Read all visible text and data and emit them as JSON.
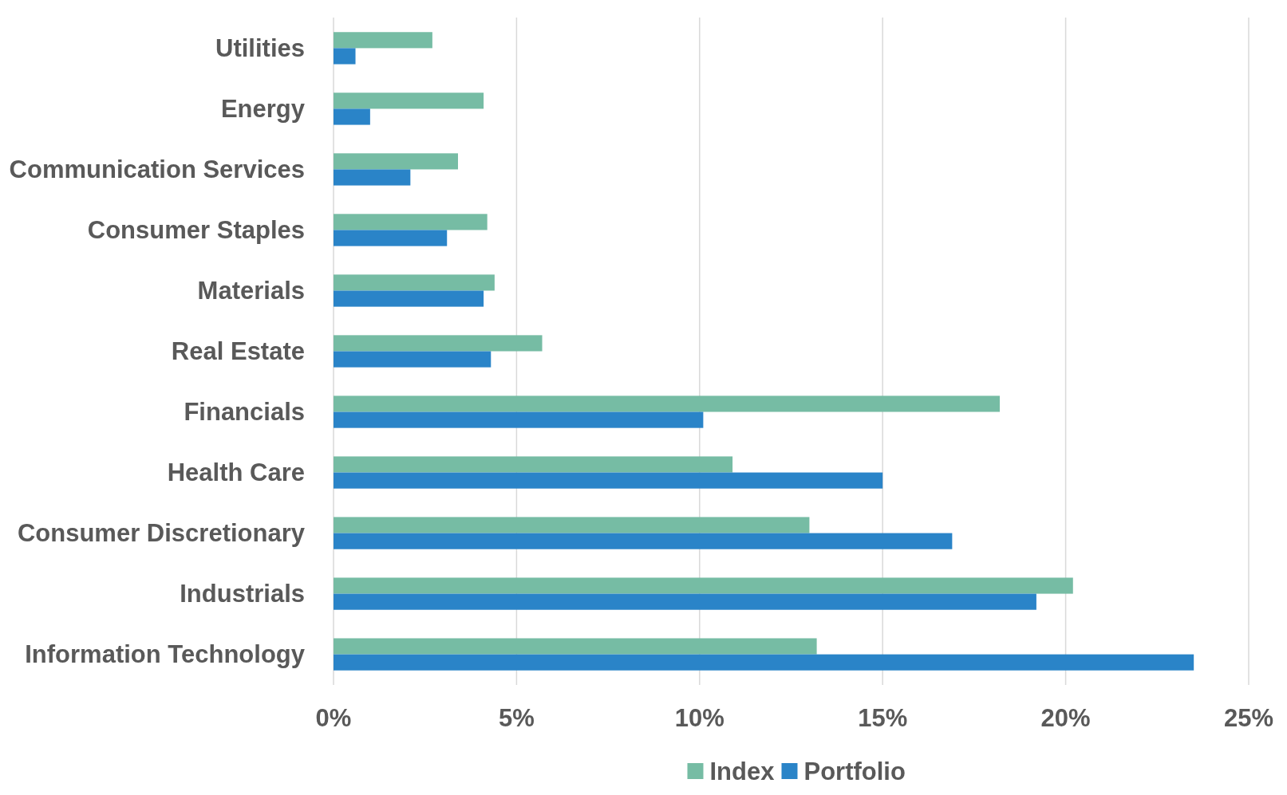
{
  "chart_data": {
    "type": "bar",
    "orientation": "horizontal",
    "categories": [
      "Utilities",
      "Energy",
      "Communication Services",
      "Consumer Staples",
      "Materials",
      "Real Estate",
      "Financials",
      "Health Care",
      "Consumer Discretionary",
      "Industrials",
      "Information Technology"
    ],
    "series": [
      {
        "name": "Index",
        "color": "#76bca4",
        "values": [
          2.7,
          4.1,
          3.4,
          4.2,
          4.4,
          5.7,
          18.2,
          10.9,
          13.0,
          20.2,
          13.2
        ]
      },
      {
        "name": "Portfolio",
        "color": "#2a84c8",
        "values": [
          0.6,
          1.0,
          2.1,
          3.1,
          4.1,
          4.3,
          10.1,
          15.0,
          16.9,
          19.2,
          23.5
        ]
      }
    ],
    "xlim": [
      0,
      25
    ],
    "xticks": [
      {
        "value": 0,
        "label": "0%"
      },
      {
        "value": 5,
        "label": "5%"
      },
      {
        "value": 10,
        "label": "10%"
      },
      {
        "value": 15,
        "label": "15%"
      },
      {
        "value": 20,
        "label": "20%"
      },
      {
        "value": 25,
        "label": "25%"
      }
    ],
    "grid": "x",
    "legend": "bottom"
  }
}
